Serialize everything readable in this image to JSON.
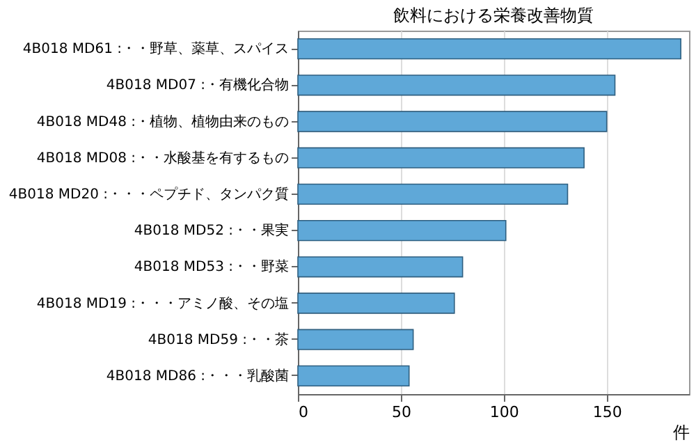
{
  "chart_data": {
    "type": "bar",
    "orientation": "horizontal",
    "title": "飲料における栄養改善物質",
    "xlabel": "件",
    "categories": [
      "4B018 MD61 :・・野草、薬草、スパイス",
      "4B018 MD07 :・有機化合物",
      "4B018 MD48 :・植物、植物由来のもの",
      "4B018 MD08 :・・水酸基を有するもの",
      "4B018 MD20 :・・・ペプチド、タンパク質",
      "4B018 MD52 :・・果実",
      "4B018 MD53 :・・野菜",
      "4B018 MD19 :・・・アミノ酸、その塩",
      "4B018 MD59 :・・茶",
      "4B018 MD86 :・・・乳酸菌"
    ],
    "values": [
      186,
      154,
      150,
      139,
      131,
      101,
      80,
      76,
      56,
      54
    ],
    "color": "#5fa8d8",
    "xlim": [
      0,
      190
    ],
    "xticks": [
      0,
      50,
      100,
      150
    ],
    "grid": "x"
  }
}
